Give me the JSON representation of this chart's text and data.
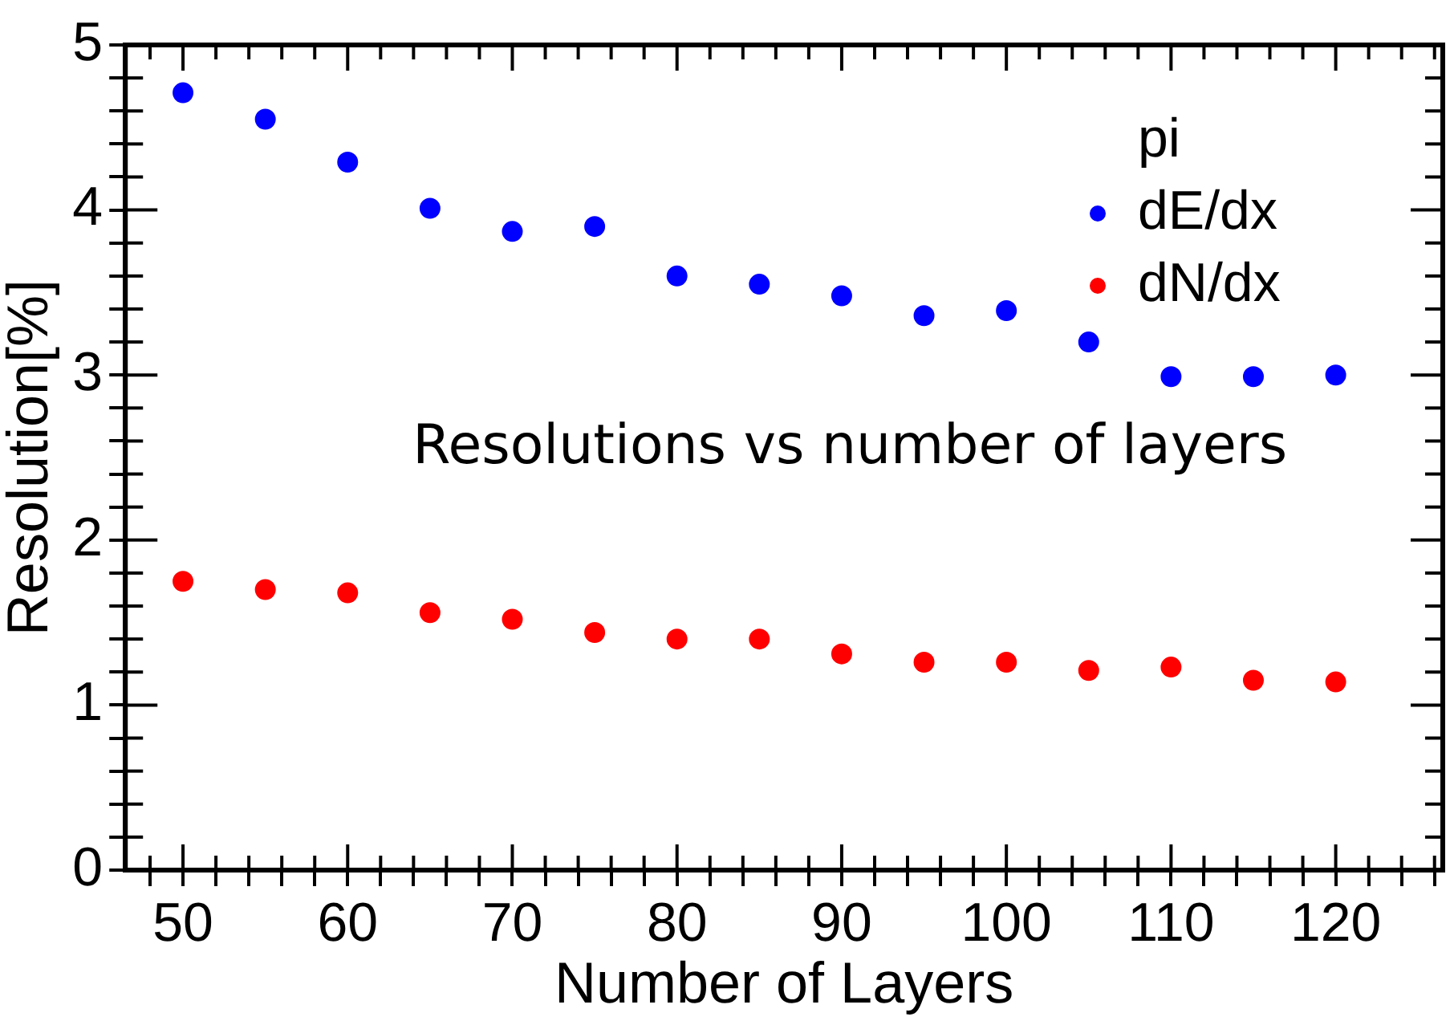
{
  "chart_data": {
    "type": "scatter",
    "xlabel": "Number of Layers",
    "ylabel": "Resolution[%]",
    "legend_title": "pi",
    "annotations": [
      "Resolutions vs number of layers"
    ],
    "x": [
      50,
      55,
      60,
      65,
      70,
      75,
      80,
      85,
      90,
      95,
      100,
      105,
      110,
      115,
      120
    ],
    "series": [
      {
        "name": "dE/dx",
        "color": "#0000ff",
        "values": [
          4.71,
          4.55,
          4.29,
          4.01,
          3.87,
          3.9,
          3.6,
          3.55,
          3.48,
          3.36,
          3.39,
          3.2,
          2.99,
          2.99,
          3.0
        ]
      },
      {
        "name": "dN/dx",
        "color": "#ff0000",
        "values": [
          1.75,
          1.7,
          1.68,
          1.56,
          1.52,
          1.44,
          1.4,
          1.4,
          1.31,
          1.26,
          1.26,
          1.21,
          1.23,
          1.15,
          1.14
        ]
      }
    ],
    "xlim": [
      46.5,
      126.5
    ],
    "xticks": [
      {
        "value": 48,
        "label": null
      },
      50,
      {
        "value": 52,
        "label": null
      },
      {
        "value": 54,
        "label": null
      },
      {
        "value": 56,
        "label": null
      },
      {
        "value": 58,
        "label": null
      },
      60,
      {
        "value": 62,
        "label": null
      },
      {
        "value": 64,
        "label": null
      },
      {
        "value": 66,
        "label": null
      },
      {
        "value": 68,
        "label": null
      },
      70,
      {
        "value": 72,
        "label": null
      },
      {
        "value": 74,
        "label": null
      },
      {
        "value": 76,
        "label": null
      },
      {
        "value": 78,
        "label": null
      },
      80,
      {
        "value": 82,
        "label": null
      },
      {
        "value": 84,
        "label": null
      },
      {
        "value": 86,
        "label": null
      },
      {
        "value": 88,
        "label": null
      },
      90,
      {
        "value": 92,
        "label": null
      },
      {
        "value": 94,
        "label": null
      },
      {
        "value": 96,
        "label": null
      },
      {
        "value": 98,
        "label": null
      },
      100,
      {
        "value": 102,
        "label": null
      },
      {
        "value": 104,
        "label": null
      },
      {
        "value": 106,
        "label": null
      },
      {
        "value": 108,
        "label": null
      },
      110,
      {
        "value": 112,
        "label": null
      },
      {
        "value": 114,
        "label": null
      },
      {
        "value": 116,
        "label": null
      },
      {
        "value": 118,
        "label": null
      },
      120,
      {
        "value": 122,
        "label": null
      },
      {
        "value": 124,
        "label": null
      },
      {
        "value": 126,
        "label": null
      }
    ],
    "ylim": [
      0,
      5
    ],
    "yticks": [
      0,
      {
        "value": 0.2,
        "label": null
      },
      {
        "value": 0.4,
        "label": null
      },
      {
        "value": 0.6,
        "label": null
      },
      {
        "value": 0.8,
        "label": null
      },
      1,
      {
        "value": 1.2,
        "label": null
      },
      {
        "value": 1.4,
        "label": null
      },
      {
        "value": 1.6,
        "label": null
      },
      {
        "value": 1.8,
        "label": null
      },
      2,
      {
        "value": 2.2,
        "label": null
      },
      {
        "value": 2.4,
        "label": null
      },
      {
        "value": 2.6,
        "label": null
      },
      {
        "value": 2.8,
        "label": null
      },
      3,
      {
        "value": 3.2,
        "label": null
      },
      {
        "value": 3.4,
        "label": null
      },
      {
        "value": 3.6,
        "label": null
      },
      {
        "value": 3.8,
        "label": null
      },
      4,
      {
        "value": 4.2,
        "label": null
      },
      {
        "value": 4.4,
        "label": null
      },
      {
        "value": 4.6,
        "label": null
      },
      {
        "value": 4.8,
        "label": null
      },
      5
    ],
    "grid": false,
    "legend": "top right",
    "marker": "circle"
  }
}
